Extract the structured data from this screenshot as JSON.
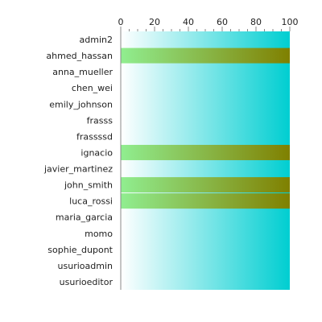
{
  "chart_data": {
    "type": "bar",
    "orientation": "horizontal",
    "title": "",
    "xlabel": "",
    "ylabel": "",
    "xlim": [
      0,
      100
    ],
    "x_ticks": [
      0,
      20,
      40,
      60,
      80,
      100
    ],
    "x_axis_position": "top",
    "grid": false,
    "categories": [
      "admin2",
      "ahmed_hassan",
      "anna_mueller",
      "chen_wei",
      "emily_johnson",
      "frasss",
      "frassssd",
      "ignacio",
      "javier_martinez",
      "john_smith",
      "luca_rossi",
      "maria_garcia",
      "momo",
      "sophie_dupont",
      "usurioadmin",
      "usurioeditor"
    ],
    "values": [
      0,
      100,
      0,
      0,
      0,
      0,
      0,
      100,
      0,
      100,
      100,
      0,
      0,
      0,
      0,
      0
    ],
    "colors": {
      "background_gradient_start": "#ffffff",
      "background_gradient_end": "#00ced1",
      "bar_gradient_start": "#90ee90",
      "bar_gradient_end": "#808000",
      "axis": "#888888",
      "text": "#222222"
    }
  }
}
